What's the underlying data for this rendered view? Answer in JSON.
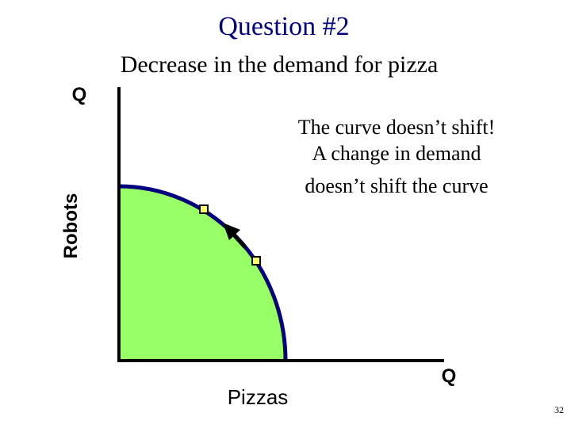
{
  "header": {
    "title": "Question #2",
    "subtitle": "Decrease in the demand for pizza"
  },
  "diagram": {
    "y_axis_label": "Robots",
    "y_axis_symbol": "Q",
    "x_axis_label": "Pizzas",
    "x_axis_symbol": "Q",
    "annotation": [
      "The curve doesn’t shift!",
      "A change in demand",
      "doesn’t shift the curve"
    ]
  },
  "footer": {
    "slide_number": "32"
  }
}
